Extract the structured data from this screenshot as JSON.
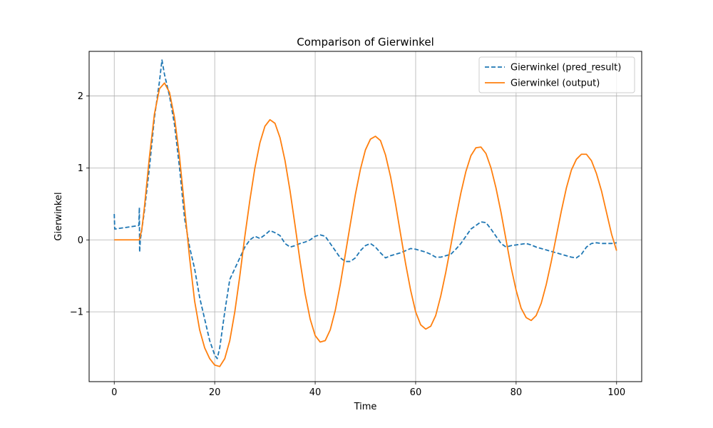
{
  "chart_data": {
    "type": "line",
    "title": "Comparison of Gierwinkel",
    "xlabel": "Time",
    "ylabel": "Gierwinkel",
    "xlim": [
      -5,
      105
    ],
    "ylim": [
      -1.97,
      2.62
    ],
    "xticks": [
      0,
      20,
      40,
      60,
      80,
      100
    ],
    "yticks": [
      -1,
      0,
      1,
      2
    ],
    "ytick_labels": [
      "−1",
      "0",
      "1",
      "2"
    ],
    "grid": true,
    "legend_position": "top-right",
    "series": [
      {
        "name": "Gierwinkel (pred_result)",
        "color": "#1f77b4",
        "style": "dashed",
        "points": [
          [
            0,
            0.36
          ],
          [
            0.1,
            0.15
          ],
          [
            2,
            0.17
          ],
          [
            4,
            0.19
          ],
          [
            4.9,
            0.2
          ],
          [
            5,
            0.45
          ],
          [
            5.05,
            -0.17
          ],
          [
            5.2,
            0.0
          ],
          [
            6,
            0.4
          ],
          [
            7,
            1.0
          ],
          [
            8,
            1.7
          ],
          [
            9,
            2.2
          ],
          [
            9.5,
            2.5
          ],
          [
            10,
            2.3
          ],
          [
            11,
            2.0
          ],
          [
            12,
            1.6
          ],
          [
            13,
            1.0
          ],
          [
            14,
            0.3
          ],
          [
            15,
            -0.1
          ],
          [
            16,
            -0.4
          ],
          [
            17,
            -0.8
          ],
          [
            18,
            -1.1
          ],
          [
            19,
            -1.4
          ],
          [
            20,
            -1.6
          ],
          [
            20.5,
            -1.65
          ],
          [
            21,
            -1.5
          ],
          [
            22,
            -1.0
          ],
          [
            23,
            -0.55
          ],
          [
            24,
            -0.4
          ],
          [
            25,
            -0.25
          ],
          [
            26,
            -0.1
          ],
          [
            27,
            0.0
          ],
          [
            28,
            0.05
          ],
          [
            29,
            0.02
          ],
          [
            30,
            0.07
          ],
          [
            31,
            0.13
          ],
          [
            32,
            0.1
          ],
          [
            33,
            0.06
          ],
          [
            34,
            -0.05
          ],
          [
            35,
            -0.1
          ],
          [
            36,
            -0.08
          ],
          [
            37,
            -0.05
          ],
          [
            38,
            -0.03
          ],
          [
            39,
            0.0
          ],
          [
            40,
            0.05
          ],
          [
            41,
            0.07
          ],
          [
            42,
            0.05
          ],
          [
            43,
            -0.05
          ],
          [
            44,
            -0.15
          ],
          [
            45,
            -0.25
          ],
          [
            46,
            -0.3
          ],
          [
            47,
            -0.3
          ],
          [
            48,
            -0.25
          ],
          [
            49,
            -0.15
          ],
          [
            50,
            -0.08
          ],
          [
            51,
            -0.05
          ],
          [
            52,
            -0.1
          ],
          [
            53,
            -0.18
          ],
          [
            54,
            -0.25
          ],
          [
            55,
            -0.22
          ],
          [
            56,
            -0.2
          ],
          [
            57,
            -0.18
          ],
          [
            58,
            -0.15
          ],
          [
            59,
            -0.12
          ],
          [
            60,
            -0.13
          ],
          [
            61,
            -0.15
          ],
          [
            62,
            -0.17
          ],
          [
            63,
            -0.2
          ],
          [
            64,
            -0.24
          ],
          [
            65,
            -0.24
          ],
          [
            66,
            -0.22
          ],
          [
            67,
            -0.2
          ],
          [
            68,
            -0.13
          ],
          [
            69,
            -0.05
          ],
          [
            70,
            0.05
          ],
          [
            71,
            0.15
          ],
          [
            72,
            0.2
          ],
          [
            73,
            0.25
          ],
          [
            74,
            0.24
          ],
          [
            75,
            0.15
          ],
          [
            76,
            0.05
          ],
          [
            77,
            -0.05
          ],
          [
            78,
            -0.1
          ],
          [
            79,
            -0.08
          ],
          [
            80,
            -0.07
          ],
          [
            81,
            -0.06
          ],
          [
            82,
            -0.05
          ],
          [
            83,
            -0.07
          ],
          [
            84,
            -0.1
          ],
          [
            85,
            -0.12
          ],
          [
            86,
            -0.14
          ],
          [
            87,
            -0.16
          ],
          [
            88,
            -0.18
          ],
          [
            89,
            -0.2
          ],
          [
            90,
            -0.22
          ],
          [
            91,
            -0.24
          ],
          [
            92,
            -0.25
          ],
          [
            93,
            -0.2
          ],
          [
            94,
            -0.1
          ],
          [
            95,
            -0.05
          ],
          [
            96,
            -0.04
          ],
          [
            97,
            -0.05
          ],
          [
            98,
            -0.05
          ],
          [
            99,
            -0.05
          ],
          [
            100,
            -0.04
          ]
        ]
      },
      {
        "name": "Gierwinkel (output)",
        "color": "#ff7f0e",
        "style": "solid",
        "points": [
          [
            0,
            0.0
          ],
          [
            1,
            0.0
          ],
          [
            2,
            0.0
          ],
          [
            3,
            0.0
          ],
          [
            4,
            0.0
          ],
          [
            5,
            0.0
          ],
          [
            5.5,
            0.15
          ],
          [
            6,
            0.45
          ],
          [
            7,
            1.15
          ],
          [
            8,
            1.75
          ],
          [
            9,
            2.1
          ],
          [
            10,
            2.18
          ],
          [
            11,
            2.05
          ],
          [
            12,
            1.7
          ],
          [
            13,
            1.15
          ],
          [
            14,
            0.45
          ],
          [
            15,
            -0.25
          ],
          [
            16,
            -0.85
          ],
          [
            17,
            -1.25
          ],
          [
            18,
            -1.5
          ],
          [
            19,
            -1.65
          ],
          [
            20,
            -1.74
          ],
          [
            21,
            -1.76
          ],
          [
            22,
            -1.65
          ],
          [
            23,
            -1.4
          ],
          [
            24,
            -1.0
          ],
          [
            25,
            -0.5
          ],
          [
            26,
            0.05
          ],
          [
            27,
            0.55
          ],
          [
            28,
            1.0
          ],
          [
            29,
            1.35
          ],
          [
            30,
            1.58
          ],
          [
            31,
            1.67
          ],
          [
            32,
            1.62
          ],
          [
            33,
            1.42
          ],
          [
            34,
            1.1
          ],
          [
            35,
            0.68
          ],
          [
            36,
            0.2
          ],
          [
            37,
            -0.3
          ],
          [
            38,
            -0.75
          ],
          [
            39,
            -1.1
          ],
          [
            40,
            -1.33
          ],
          [
            41,
            -1.42
          ],
          [
            42,
            -1.4
          ],
          [
            43,
            -1.25
          ],
          [
            44,
            -0.98
          ],
          [
            45,
            -0.62
          ],
          [
            46,
            -0.2
          ],
          [
            47,
            0.22
          ],
          [
            48,
            0.63
          ],
          [
            49,
            0.98
          ],
          [
            50,
            1.25
          ],
          [
            51,
            1.4
          ],
          [
            52,
            1.44
          ],
          [
            53,
            1.38
          ],
          [
            54,
            1.18
          ],
          [
            55,
            0.88
          ],
          [
            56,
            0.5
          ],
          [
            57,
            0.08
          ],
          [
            58,
            -0.33
          ],
          [
            59,
            -0.7
          ],
          [
            60,
            -1.0
          ],
          [
            61,
            -1.18
          ],
          [
            62,
            -1.24
          ],
          [
            63,
            -1.2
          ],
          [
            64,
            -1.05
          ],
          [
            65,
            -0.78
          ],
          [
            66,
            -0.45
          ],
          [
            67,
            -0.08
          ],
          [
            68,
            0.3
          ],
          [
            69,
            0.65
          ],
          [
            70,
            0.95
          ],
          [
            71,
            1.17
          ],
          [
            72,
            1.28
          ],
          [
            73,
            1.29
          ],
          [
            74,
            1.2
          ],
          [
            75,
            1.0
          ],
          [
            76,
            0.72
          ],
          [
            77,
            0.38
          ],
          [
            78,
            0.0
          ],
          [
            79,
            -0.38
          ],
          [
            80,
            -0.7
          ],
          [
            81,
            -0.95
          ],
          [
            82,
            -1.08
          ],
          [
            83,
            -1.12
          ],
          [
            84,
            -1.05
          ],
          [
            85,
            -0.88
          ],
          [
            86,
            -0.62
          ],
          [
            87,
            -0.3
          ],
          [
            88,
            0.05
          ],
          [
            89,
            0.4
          ],
          [
            90,
            0.72
          ],
          [
            91,
            0.97
          ],
          [
            92,
            1.12
          ],
          [
            93,
            1.19
          ],
          [
            94,
            1.19
          ],
          [
            95,
            1.1
          ],
          [
            96,
            0.92
          ],
          [
            97,
            0.68
          ],
          [
            98,
            0.38
          ],
          [
            99,
            0.08
          ],
          [
            100,
            -0.15
          ]
        ]
      }
    ]
  }
}
